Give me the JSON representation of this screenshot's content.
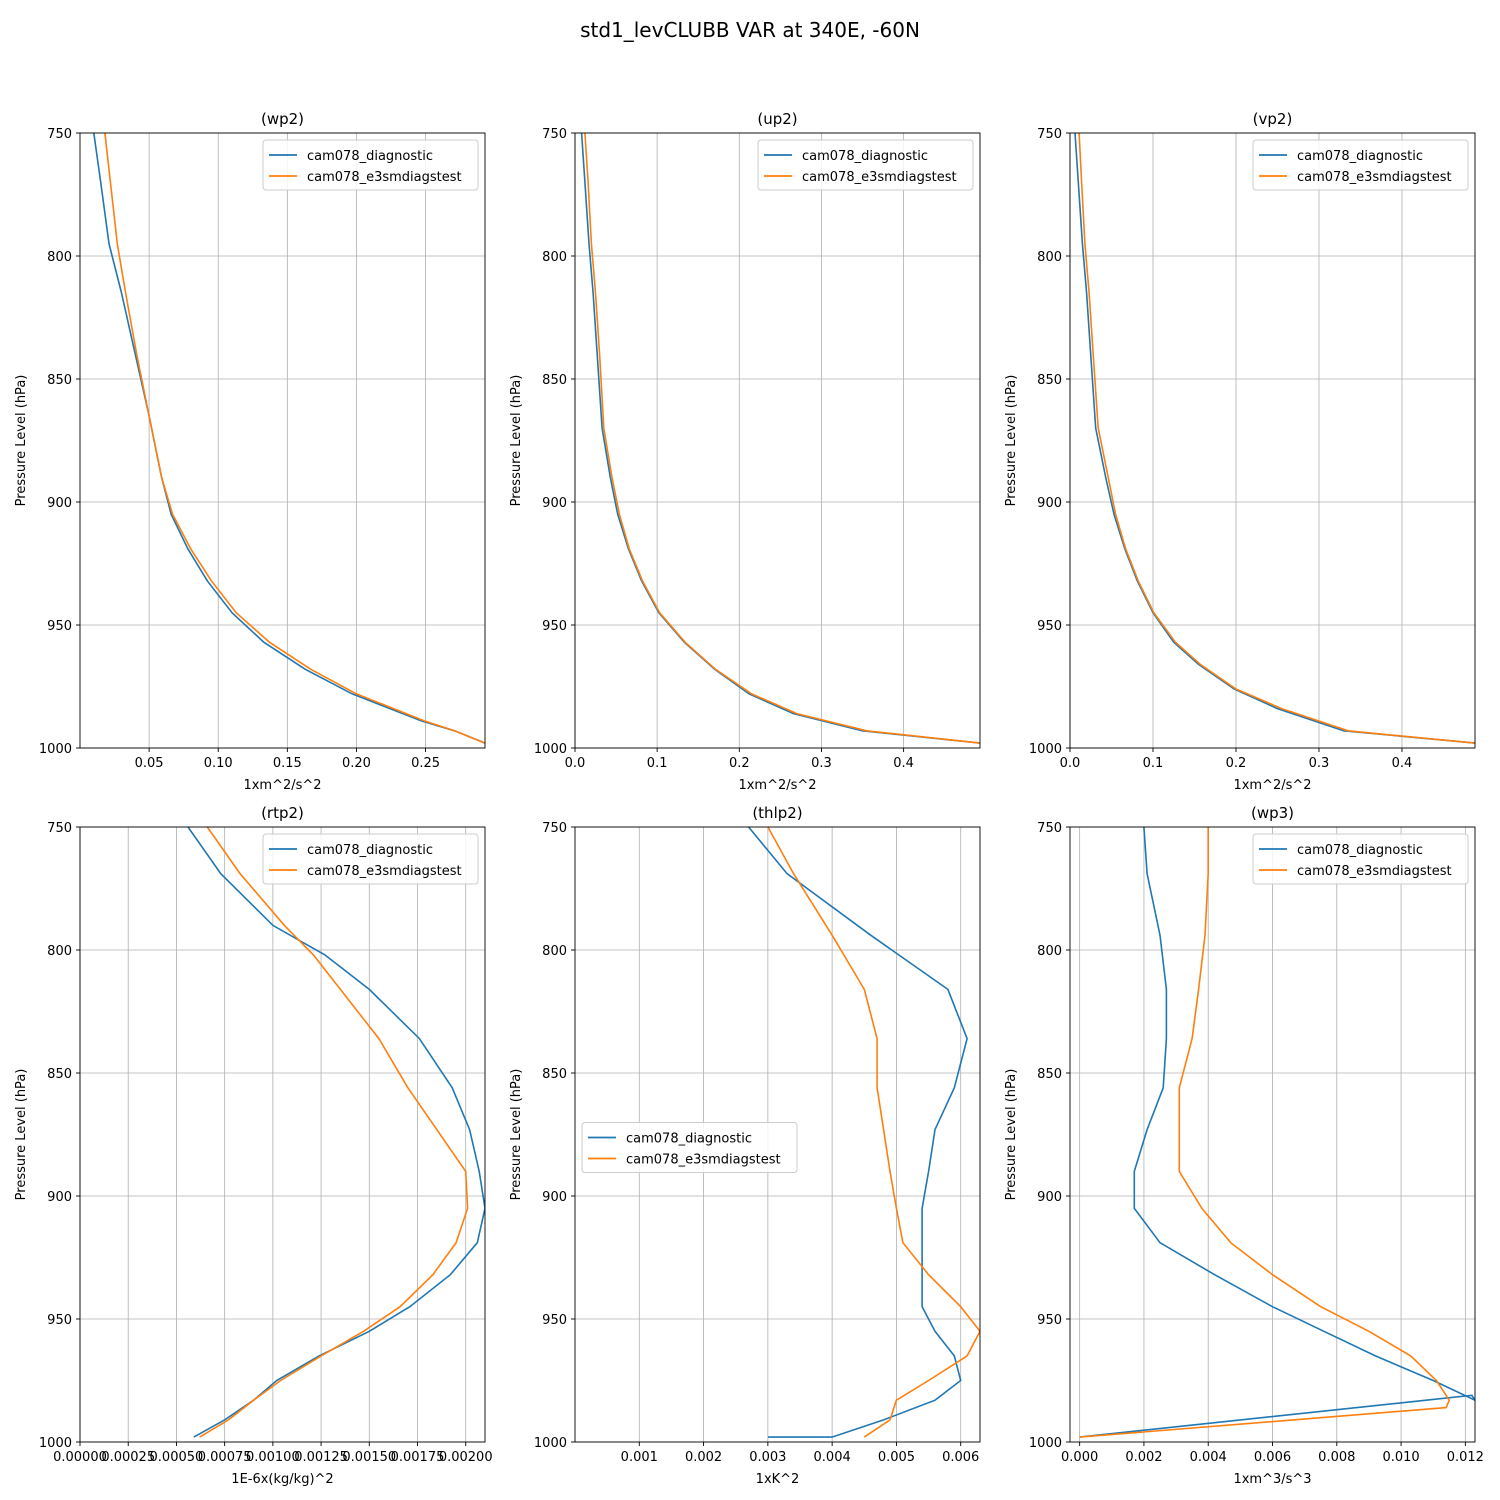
{
  "figure_title": "std1_levCLUBB VAR at 340E, -60N",
  "colors": {
    "series1": "#1f77b4",
    "series2": "#ff7f0e",
    "grid": "#b0b0b0"
  },
  "chart_data": [
    {
      "type": "line",
      "title": "(wp2)",
      "xlabel": "1xm^2/s^2",
      "ylabel": "Pressure Level (hPa)",
      "xlim": [
        0.0,
        0.293
      ],
      "ylim": [
        1000,
        750
      ],
      "xticks": [
        0.05,
        0.1,
        0.15,
        0.2,
        0.25
      ],
      "xtick_labels": [
        "0.05",
        "0.10",
        "0.15",
        "0.20",
        "0.25"
      ],
      "yticks": [
        750,
        800,
        850,
        900,
        950,
        1000
      ],
      "ytick_labels": [
        "750",
        "800",
        "850",
        "900",
        "950",
        "1000"
      ],
      "legend_loc": "upper right",
      "series": [
        {
          "name": "cam078_diagnostic",
          "x": [
            0.01,
            0.015,
            0.021,
            0.03,
            0.04,
            0.05,
            0.059,
            0.066,
            0.078,
            0.092,
            0.11,
            0.133,
            0.163,
            0.197,
            0.247,
            0.271,
            0.293
          ],
          "y": [
            750,
            770,
            795,
            815,
            840,
            865,
            890,
            905,
            919,
            932,
            945,
            957,
            968,
            978,
            989,
            993,
            998
          ]
        },
        {
          "name": "cam078_e3smdiagstest",
          "x": [
            0.018,
            0.022,
            0.027,
            0.033,
            0.041,
            0.05,
            0.059,
            0.067,
            0.08,
            0.095,
            0.113,
            0.137,
            0.167,
            0.2,
            0.249,
            0.271,
            0.293
          ],
          "y": [
            750,
            770,
            795,
            815,
            840,
            865,
            890,
            905,
            919,
            932,
            945,
            957,
            968,
            978,
            989,
            993,
            998
          ]
        }
      ]
    },
    {
      "type": "line",
      "title": "(up2)",
      "xlabel": "1xm^2/s^2",
      "ylabel": "Pressure Level (hPa)",
      "xlim": [
        0.0,
        0.493
      ],
      "ylim": [
        1000,
        750
      ],
      "xticks": [
        0.0,
        0.1,
        0.2,
        0.3,
        0.4
      ],
      "xtick_labels": [
        "0.0",
        "0.1",
        "0.2",
        "0.3",
        "0.4"
      ],
      "yticks": [
        750,
        800,
        850,
        900,
        950,
        1000
      ],
      "ytick_labels": [
        "750",
        "800",
        "850",
        "900",
        "950",
        "1000"
      ],
      "legend_loc": "upper right",
      "series": [
        {
          "name": "cam078_diagnostic",
          "x": [
            0.008,
            0.012,
            0.017,
            0.022,
            0.027,
            0.033,
            0.043,
            0.052,
            0.065,
            0.081,
            0.102,
            0.133,
            0.17,
            0.212,
            0.266,
            0.35,
            0.493
          ],
          "y": [
            750,
            770,
            795,
            815,
            840,
            870,
            890,
            905,
            919,
            932,
            945,
            957,
            968,
            978,
            986,
            993,
            998
          ]
        },
        {
          "name": "cam078_e3smdiagstest",
          "x": [
            0.012,
            0.016,
            0.02,
            0.025,
            0.03,
            0.035,
            0.045,
            0.054,
            0.066,
            0.082,
            0.103,
            0.134,
            0.171,
            0.215,
            0.27,
            0.355,
            0.493
          ],
          "y": [
            750,
            770,
            795,
            815,
            840,
            870,
            890,
            905,
            919,
            932,
            945,
            957,
            968,
            978,
            986,
            993,
            998
          ]
        }
      ]
    },
    {
      "type": "line",
      "title": "(vp2)",
      "xlabel": "1xm^2/s^2",
      "ylabel": "Pressure Level (hPa)",
      "xlim": [
        0.0,
        0.488
      ],
      "ylim": [
        1000,
        750
      ],
      "xticks": [
        0.0,
        0.1,
        0.2,
        0.3,
        0.4
      ],
      "xtick_labels": [
        "0.0",
        "0.1",
        "0.2",
        "0.3",
        "0.4"
      ],
      "yticks": [
        750,
        800,
        850,
        900,
        950,
        1000
      ],
      "ytick_labels": [
        "750",
        "800",
        "850",
        "900",
        "950",
        "1000"
      ],
      "legend_loc": "upper right",
      "series": [
        {
          "name": "cam078_diagnostic",
          "x": [
            0.006,
            0.01,
            0.015,
            0.02,
            0.025,
            0.031,
            0.043,
            0.053,
            0.066,
            0.081,
            0.1,
            0.125,
            0.155,
            0.198,
            0.25,
            0.33,
            0.488
          ],
          "y": [
            750,
            770,
            795,
            815,
            840,
            870,
            890,
            905,
            919,
            932,
            945,
            957,
            966,
            976,
            984,
            993,
            998
          ]
        },
        {
          "name": "cam078_e3smdiagstest",
          "x": [
            0.011,
            0.014,
            0.018,
            0.023,
            0.028,
            0.034,
            0.046,
            0.055,
            0.067,
            0.082,
            0.101,
            0.127,
            0.157,
            0.2,
            0.255,
            0.335,
            0.488
          ],
          "y": [
            750,
            770,
            795,
            815,
            840,
            870,
            890,
            905,
            919,
            932,
            945,
            957,
            966,
            976,
            984,
            993,
            998
          ]
        }
      ]
    },
    {
      "type": "line",
      "title": "(rtp2)",
      "xlabel": "1E-6x(kg/kg)^2",
      "ylabel": "Pressure Level (hPa)",
      "xlim": [
        0.0,
        0.0021
      ],
      "ylim": [
        1000,
        750
      ],
      "xticks": [
        0.0,
        0.00025,
        0.0005,
        0.00075,
        0.001,
        0.00125,
        0.0015,
        0.00175,
        0.002
      ],
      "xtick_labels": [
        "0.00000",
        "0.00025",
        "0.00050",
        "0.00075",
        "0.00100",
        "0.00125",
        "0.00150",
        "0.00175",
        "0.00200"
      ],
      "yticks": [
        750,
        800,
        850,
        900,
        950,
        1000
      ],
      "ytick_labels": [
        "750",
        "800",
        "850",
        "900",
        "950",
        "1000"
      ],
      "legend_loc": "upper right",
      "series": [
        {
          "name": "cam078_diagnostic",
          "x": [
            0.00056,
            0.00073,
            0.001,
            0.00127,
            0.0015,
            0.00176,
            0.00193,
            0.00202,
            0.00207,
            0.0021,
            0.00206,
            0.00192,
            0.00171,
            0.0015,
            0.00124,
            0.00102,
            0.0009,
            0.00075,
            0.00059
          ],
          "y": [
            750,
            769,
            790,
            802,
            816,
            836,
            856,
            873,
            890,
            905,
            919,
            932,
            945,
            955,
            965,
            975,
            983,
            991,
            998
          ]
        },
        {
          "name": "cam078_e3smdiagstest",
          "x": [
            0.00066,
            0.00083,
            0.00106,
            0.00121,
            0.00135,
            0.00155,
            0.0017,
            0.00185,
            0.002,
            0.00201,
            0.00195,
            0.00183,
            0.00166,
            0.00147,
            0.00125,
            0.00104,
            0.0009,
            0.00077,
            0.00062
          ],
          "y": [
            750,
            769,
            790,
            802,
            816,
            836,
            856,
            873,
            890,
            905,
            919,
            932,
            945,
            955,
            965,
            975,
            983,
            991,
            998
          ]
        }
      ]
    },
    {
      "type": "line",
      "title": "(thlp2)",
      "xlabel": "1xK^2",
      "ylabel": "Pressure Level (hPa)",
      "xlim": [
        0.0,
        0.0063
      ],
      "ylim": [
        1000,
        750
      ],
      "xticks": [
        0.001,
        0.002,
        0.003,
        0.004,
        0.005,
        0.006
      ],
      "xtick_labels": [
        "0.001",
        "0.002",
        "0.003",
        "0.004",
        "0.005",
        "0.006"
      ],
      "yticks": [
        750,
        800,
        850,
        900,
        950,
        1000
      ],
      "ytick_labels": [
        "750",
        "800",
        "850",
        "900",
        "950",
        "1000"
      ],
      "legend_loc": "center left",
      "series": [
        {
          "name": "cam078_diagnostic",
          "x": [
            0.0027,
            0.0033,
            0.0046,
            0.0058,
            0.0061,
            0.0059,
            0.0056,
            0.0055,
            0.0054,
            0.0054,
            0.0054,
            0.0054,
            0.0056,
            0.0059,
            0.006,
            0.0056,
            0.0048,
            0.004,
            0.003
          ],
          "y": [
            750,
            769,
            794,
            816,
            836,
            856,
            873,
            890,
            905,
            919,
            932,
            945,
            955,
            965,
            975,
            983,
            991,
            998,
            998
          ]
        },
        {
          "name": "cam078_e3smdiagstest",
          "x": [
            0.003,
            0.0034,
            0.004,
            0.0045,
            0.0047,
            0.0047,
            0.0048,
            0.0049,
            0.005,
            0.0051,
            0.0055,
            0.006,
            0.0063,
            0.0061,
            0.0055,
            0.005,
            0.0049,
            0.0045,
            0.0045
          ],
          "y": [
            750,
            769,
            794,
            816,
            836,
            856,
            873,
            890,
            905,
            919,
            932,
            945,
            955,
            965,
            975,
            983,
            991,
            998,
            998
          ]
        }
      ]
    },
    {
      "type": "line",
      "title": "(wp3)",
      "xlabel": "1xm^3/s^3",
      "ylabel": "Pressure Level (hPa)",
      "xlim": [
        -0.0003,
        0.0123
      ],
      "ylim": [
        1000,
        750
      ],
      "xticks": [
        0.0,
        0.002,
        0.004,
        0.006,
        0.008,
        0.01,
        0.012
      ],
      "xtick_labels": [
        "0.000",
        "0.002",
        "0.004",
        "0.006",
        "0.008",
        "0.010",
        "0.012"
      ],
      "yticks": [
        750,
        800,
        850,
        900,
        950,
        1000
      ],
      "ytick_labels": [
        "750",
        "800",
        "850",
        "900",
        "950",
        "1000"
      ],
      "legend_loc": "upper right",
      "series": [
        {
          "name": "cam078_diagnostic",
          "x": [
            0.002,
            0.0021,
            0.0025,
            0.0027,
            0.0027,
            0.0026,
            0.0021,
            0.0017,
            0.0017,
            0.0025,
            0.0042,
            0.006,
            0.0076,
            0.0092,
            0.011,
            0.0123,
            0.0122,
            0.0
          ],
          "y": [
            750,
            769,
            794,
            816,
            836,
            856,
            873,
            890,
            905,
            919,
            932,
            945,
            955,
            965,
            975,
            983,
            981,
            998
          ]
        },
        {
          "name": "cam078_e3smdiagstest",
          "x": [
            0.004,
            0.004,
            0.0039,
            0.0037,
            0.0035,
            0.0031,
            0.0031,
            0.0031,
            0.0038,
            0.0047,
            0.006,
            0.0075,
            0.009,
            0.0103,
            0.0111,
            0.0115,
            0.0114,
            0.0
          ],
          "y": [
            750,
            769,
            794,
            816,
            836,
            856,
            873,
            890,
            905,
            919,
            932,
            945,
            955,
            965,
            975,
            983,
            986,
            998
          ]
        }
      ]
    }
  ]
}
